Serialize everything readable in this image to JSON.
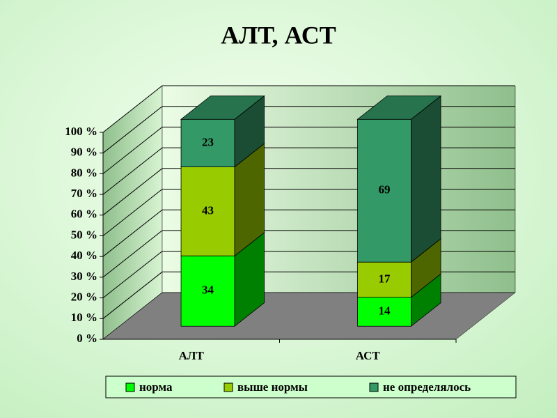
{
  "chart_data": {
    "type": "bar3d_stacked",
    "title": "АЛТ, АСТ",
    "categories": [
      "АЛТ",
      "АСТ"
    ],
    "series": [
      {
        "name": "норма",
        "color": "#00ff00",
        "values": [
          34,
          14
        ]
      },
      {
        "name": "выше нормы",
        "color": "#99cc00",
        "values": [
          43,
          17
        ]
      },
      {
        "name": "не определялось",
        "color": "#339966",
        "values": [
          23,
          69
        ]
      }
    ],
    "ylim": [
      0,
      100
    ],
    "yticks": [
      {
        "value": 0,
        "label": "0 %"
      },
      {
        "value": 10,
        "label": "10 %"
      },
      {
        "value": 20,
        "label": "20 %"
      },
      {
        "value": 30,
        "label": "30 %"
      },
      {
        "value": 40,
        "label": "40 %"
      },
      {
        "value": 50,
        "label": "50 %"
      },
      {
        "value": 60,
        "label": "60 %"
      },
      {
        "value": 70,
        "label": "70 %"
      },
      {
        "value": 80,
        "label": "80 %"
      },
      {
        "value": 90,
        "label": "90 %"
      },
      {
        "value": 100,
        "label": "100 %"
      }
    ],
    "grid": true,
    "legend": "bottom"
  }
}
